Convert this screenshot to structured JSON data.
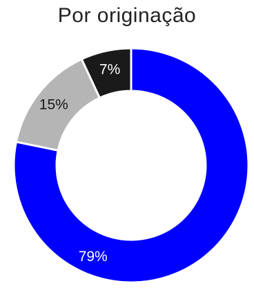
{
  "chart_data": {
    "type": "pie",
    "title": "Por originação",
    "donut": true,
    "slices": [
      {
        "label": "79%",
        "value": 79,
        "color": "#0000ff",
        "label_color": "#ffffff"
      },
      {
        "label": "15%",
        "value": 15,
        "color": "#b5b5b5",
        "label_color": "#1a1a1a"
      },
      {
        "label": "7%",
        "value": 7,
        "color": "#1a1a1a",
        "label_color": "#ffffff"
      }
    ]
  }
}
